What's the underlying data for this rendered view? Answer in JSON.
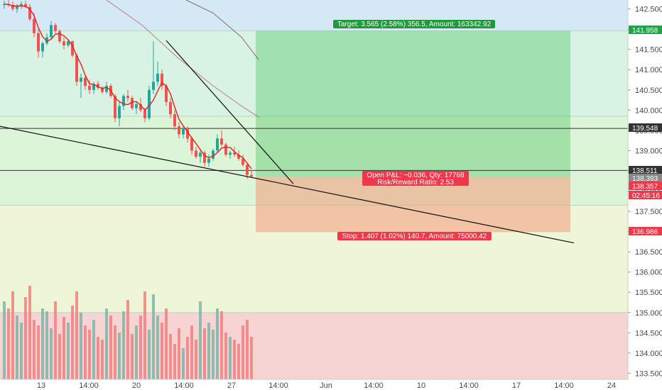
{
  "chart_data": {
    "type": "candlestick",
    "y_axis": {
      "ticks": [
        "142.500",
        "142.000",
        "141.500",
        "141.000",
        "140.500",
        "140.000",
        "139.500",
        "139.000",
        "138.500",
        "138.000",
        "137.500",
        "137.000",
        "136.500",
        "136.000",
        "135.500",
        "135.000",
        "134.500",
        "134.000",
        "133.500"
      ],
      "range": [
        133.35,
        142.72
      ]
    },
    "x_axis": {
      "ticks": [
        "13",
        "14:00",
        "20",
        "14:00",
        "27",
        "14:00",
        "Jun",
        "14:00",
        "10",
        "14:00",
        "17",
        "14:00",
        "24"
      ]
    },
    "zones": [
      {
        "from": 141.958,
        "to": 142.72,
        "color": "#d4e8f6"
      },
      {
        "from": 139.85,
        "to": 141.958,
        "color": "#d8f3e4"
      },
      {
        "from": 137.65,
        "to": 139.85,
        "color": "#dcf4d8"
      },
      {
        "from": 135.0,
        "to": 137.65,
        "color": "#eef6d7"
      },
      {
        "from": 133.35,
        "to": 135.0,
        "color": "#f6d4d4"
      }
    ],
    "horizontal_lines": [
      139.548,
      138.511
    ],
    "trendlines": [
      {
        "from": [
          "11",
          139.6
        ],
        "to": [
          "Jun 22",
          136.72
        ]
      },
      {
        "from": [
          "May 21",
          141.7
        ],
        "to": [
          "May 29",
          138.2
        ]
      }
    ],
    "position": {
      "entry": 138.357,
      "target": 141.958,
      "stop": 136.986,
      "target_label": "Target: 3.565 (2.58%) 356.5, Amount: 163342.92",
      "stop_label": "Stop: 1.407 (1.02%) 140.7, Amount: 75000.42",
      "pnl_label": "Open P&L: −0.036, Qty: 17768",
      "ratio_label": "Risk/Reward Ratio: 2.53"
    },
    "price_labels": [
      {
        "value": "141.958",
        "color": "#22a34a"
      },
      {
        "value": "139.548",
        "color": "#333333"
      },
      {
        "value": "138.511",
        "color": "#333333"
      },
      {
        "value": "138.393",
        "color": "#888888"
      },
      {
        "value": "138.357",
        "color": "#f0384a"
      },
      {
        "value": "02:45:16",
        "color": "#f0384a"
      },
      {
        "value": "136.986",
        "color": "#f0384a"
      }
    ],
    "ohlc": [
      [
        142.6,
        142.7,
        142.5,
        142.62
      ],
      [
        142.62,
        142.72,
        142.55,
        142.6
      ],
      [
        142.6,
        142.68,
        142.45,
        142.5
      ],
      [
        142.5,
        142.62,
        142.4,
        142.58
      ],
      [
        142.58,
        142.68,
        142.5,
        142.62
      ],
      [
        142.62,
        142.7,
        142.52,
        142.55
      ],
      [
        142.55,
        142.62,
        142.2,
        142.25
      ],
      [
        142.25,
        142.4,
        141.8,
        141.9
      ],
      [
        141.9,
        142.0,
        141.3,
        141.45
      ],
      [
        141.45,
        141.7,
        141.3,
        141.65
      ],
      [
        141.65,
        141.9,
        141.6,
        141.8
      ],
      [
        141.8,
        142.2,
        141.75,
        142.1
      ],
      [
        142.1,
        142.15,
        141.9,
        141.95
      ],
      [
        141.95,
        142.0,
        141.65,
        141.7
      ],
      [
        141.7,
        141.8,
        141.5,
        141.6
      ],
      [
        141.6,
        141.75,
        141.55,
        141.7
      ],
      [
        141.7,
        141.72,
        141.3,
        141.35
      ],
      [
        141.35,
        141.4,
        140.6,
        140.7
      ],
      [
        140.7,
        140.9,
        140.3,
        140.8
      ],
      [
        140.8,
        140.85,
        140.5,
        140.6
      ],
      [
        140.6,
        140.75,
        140.4,
        140.5
      ],
      [
        140.5,
        140.7,
        140.4,
        140.65
      ],
      [
        140.65,
        140.72,
        140.5,
        140.55
      ],
      [
        140.55,
        140.6,
        140.4,
        140.45
      ],
      [
        140.45,
        140.7,
        140.4,
        140.6
      ],
      [
        140.6,
        140.65,
        140.3,
        140.35
      ],
      [
        140.35,
        140.4,
        139.7,
        139.8
      ],
      [
        139.8,
        140.2,
        139.6,
        140.1
      ],
      [
        140.1,
        140.4,
        140.0,
        140.35
      ],
      [
        140.35,
        140.5,
        140.2,
        140.3
      ],
      [
        140.3,
        140.35,
        140.0,
        140.05
      ],
      [
        140.05,
        140.2,
        139.9,
        140.15
      ],
      [
        140.15,
        140.3,
        139.95,
        140.0
      ],
      [
        140.0,
        140.05,
        139.7,
        139.8
      ],
      [
        139.8,
        140.6,
        139.75,
        140.5
      ],
      [
        140.5,
        141.7,
        140.4,
        140.7
      ],
      [
        140.7,
        141.2,
        140.6,
        140.9
      ],
      [
        140.9,
        141.0,
        140.5,
        140.6
      ],
      [
        140.6,
        140.65,
        140.1,
        140.2
      ],
      [
        140.2,
        140.3,
        139.8,
        139.9
      ],
      [
        139.9,
        140.0,
        139.5,
        139.6
      ],
      [
        139.6,
        139.7,
        139.3,
        139.4
      ],
      [
        139.4,
        139.6,
        139.3,
        139.55
      ],
      [
        139.55,
        139.6,
        139.2,
        139.3
      ],
      [
        139.3,
        139.35,
        138.9,
        139.0
      ],
      [
        139.0,
        139.1,
        138.8,
        138.85
      ],
      [
        138.85,
        139.0,
        138.7,
        138.95
      ],
      [
        138.95,
        139.0,
        138.6,
        138.7
      ],
      [
        138.7,
        138.9,
        138.6,
        138.8
      ],
      [
        138.8,
        139.05,
        138.75,
        139.0
      ],
      [
        139.0,
        139.4,
        138.95,
        139.3
      ],
      [
        139.3,
        139.5,
        139.1,
        139.15
      ],
      [
        139.15,
        139.2,
        138.85,
        138.9
      ],
      [
        138.9,
        139.0,
        138.8,
        138.95
      ],
      [
        138.95,
        139.1,
        138.85,
        138.9
      ],
      [
        138.9,
        139.0,
        138.75,
        138.8
      ],
      [
        138.8,
        138.9,
        138.6,
        138.65
      ],
      [
        138.65,
        138.7,
        138.3,
        138.4
      ],
      [
        138.4,
        138.5,
        138.33,
        138.36
      ]
    ],
    "volume": [
      0.55,
      0.5,
      0.62,
      0.45,
      0.4,
      0.58,
      0.66,
      0.42,
      0.38,
      0.5,
      0.48,
      0.36,
      0.55,
      0.32,
      0.44,
      0.4,
      0.52,
      0.62,
      0.47,
      0.38,
      0.35,
      0.42,
      0.3,
      0.28,
      0.5,
      0.45,
      0.38,
      0.33,
      0.48,
      0.56,
      0.32,
      0.38,
      0.45,
      0.62,
      0.35,
      0.6,
      0.45,
      0.4,
      0.5,
      0.32,
      0.25,
      0.36,
      0.22,
      0.3,
      0.38,
      0.28,
      0.55,
      0.36,
      0.4,
      0.35,
      0.5,
      0.48,
      0.33,
      0.3,
      0.28,
      0.25,
      0.38,
      0.42,
      0.3
    ]
  }
}
